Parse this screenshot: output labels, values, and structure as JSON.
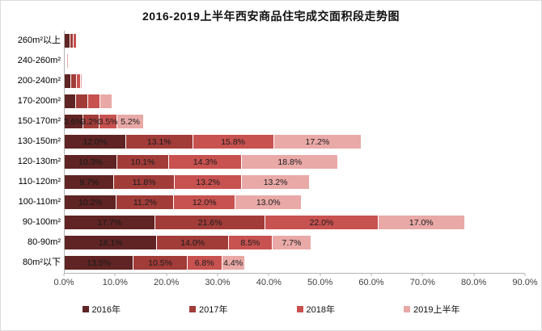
{
  "title": "2016-2019上半年西安商品住宅成交面积段走势图",
  "chart_data": {
    "type": "bar",
    "orientation": "horizontal",
    "stacked": true,
    "title": "2016-2019上半年西安商品住宅成交面积段走势图",
    "categories": [
      "260m²以上",
      "240-260m²",
      "200-240m²",
      "170-200m²",
      "150-170m²",
      "130-150m²",
      "120-130m²",
      "110-120m²",
      "100-110m²",
      "90-100m²",
      "80-90m²",
      "80m²以下"
    ],
    "series": [
      {
        "name": "2016年",
        "color": "#5f2423",
        "values": [
          1.1,
          0.2,
          1.2,
          2.2,
          3.6,
          12.0,
          10.3,
          9.7,
          10.2,
          17.7,
          18.1,
          13.5
        ]
      },
      {
        "name": "2017年",
        "color": "#a13c39",
        "values": [
          0.7,
          0.1,
          1.1,
          2.4,
          3.2,
          13.1,
          10.1,
          11.8,
          11.2,
          21.6,
          14.0,
          10.5
        ]
      },
      {
        "name": "2018年",
        "color": "#c75250",
        "values": [
          0.6,
          0.1,
          0.8,
          2.3,
          3.5,
          15.8,
          14.3,
          13.2,
          12.0,
          22.0,
          8.5,
          6.8
        ]
      },
      {
        "name": "2019上半年",
        "color": "#e8a9a7",
        "values": [
          0.1,
          0.2,
          0.4,
          2.5,
          5.2,
          17.2,
          18.8,
          13.2,
          13.0,
          17.0,
          7.7,
          4.4
        ]
      }
    ],
    "data_labels_shown_per_category": [
      false,
      false,
      false,
      false,
      true,
      true,
      true,
      true,
      true,
      true,
      true,
      true
    ],
    "x_ticks": [
      "0.0%",
      "10.0%",
      "20.0%",
      "30.0%",
      "40.0%",
      "50.0%",
      "60.0%",
      "70.0%",
      "80.0%",
      "90.0%"
    ],
    "xlim": [
      0,
      90
    ],
    "xlabel": "",
    "ylabel": "",
    "grid": false,
    "legend_position": "bottom"
  },
  "colors": {
    "axis_line": "#b3b3b3",
    "tick_text": "#3f3f3f",
    "data_label_text": "#1a1a1a"
  }
}
